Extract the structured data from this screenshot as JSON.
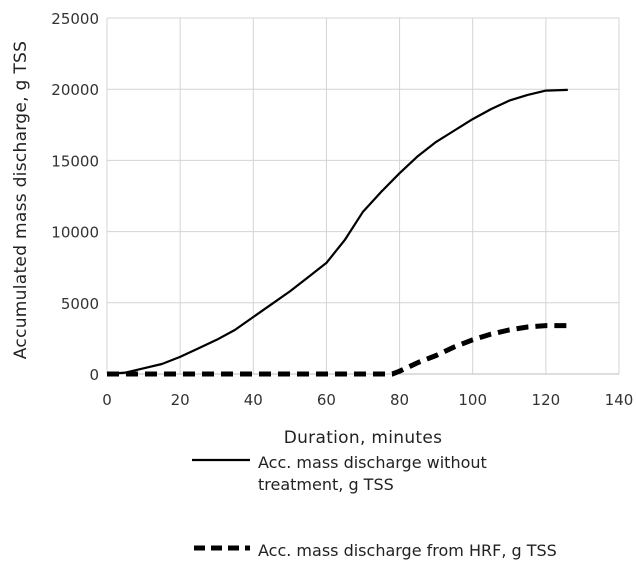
{
  "chart_data": {
    "type": "line",
    "title": "",
    "xlabel": "Duration, minutes",
    "ylabel": "Accumulated mass discharge, g TSS",
    "xlim": [
      0,
      140
    ],
    "ylim": [
      0,
      25000
    ],
    "x_ticks": [
      "0",
      "20",
      "40",
      "60",
      "80",
      "100",
      "120",
      "140"
    ],
    "y_ticks": [
      "0",
      "5000",
      "10000",
      "15000",
      "20000",
      "25000"
    ],
    "grid": true,
    "legend_position": "bottom",
    "series": [
      {
        "name": "Acc. mass discharge without treatment,  g TSS",
        "style": "solid",
        "color": "#000000",
        "x": [
          0,
          5,
          10,
          15,
          20,
          25,
          30,
          35,
          40,
          45,
          50,
          55,
          60,
          65,
          70,
          75,
          80,
          85,
          90,
          95,
          100,
          105,
          110,
          115,
          120,
          126
        ],
        "y": [
          0,
          100,
          400,
          700,
          1200,
          1800,
          2400,
          3100,
          4000,
          4900,
          5800,
          6800,
          7800,
          9400,
          11400,
          12800,
          14100,
          15300,
          16300,
          17100,
          17900,
          18600,
          19200,
          19600,
          19900,
          19950
        ]
      },
      {
        "name": "Acc. mass discharge from HRF,  g TSS",
        "style": "dashed",
        "color": "#000000",
        "x": [
          0,
          5,
          10,
          20,
          30,
          40,
          50,
          60,
          70,
          78,
          80,
          85,
          90,
          95,
          100,
          105,
          110,
          115,
          120,
          126
        ],
        "y": [
          0,
          0,
          0,
          0,
          0,
          0,
          0,
          0,
          0,
          0,
          200,
          800,
          1300,
          1900,
          2400,
          2800,
          3100,
          3300,
          3400,
          3400
        ]
      }
    ]
  }
}
